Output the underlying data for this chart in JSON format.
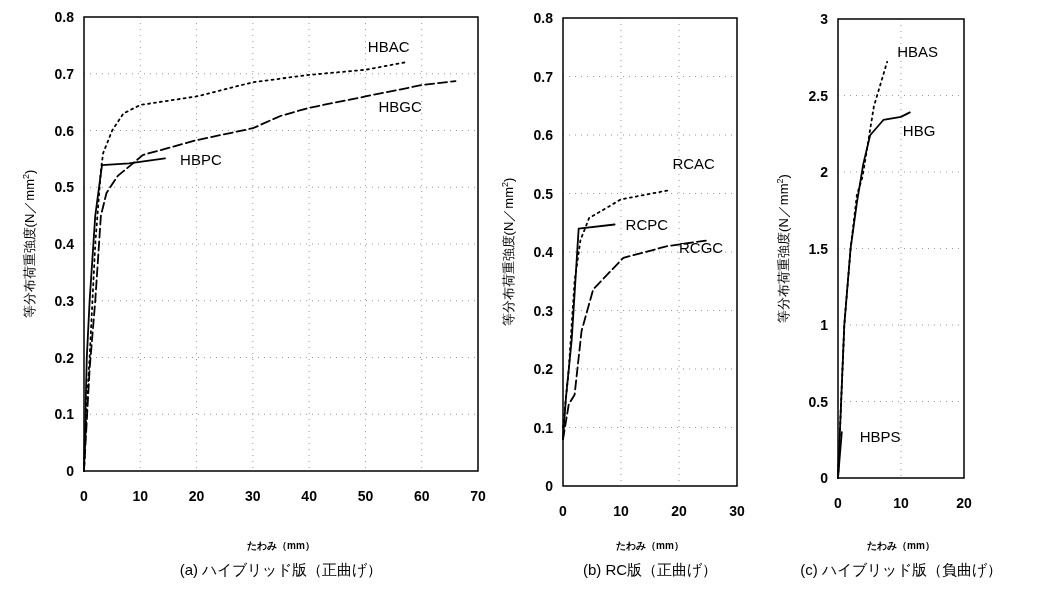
{
  "chart_data": [
    {
      "type": "line",
      "title": "(a) ハイブリッド版（正曲げ）",
      "xlabel": "たわみ（mm）",
      "ylabel": "等分布荷重強度(N／mm$^{2}$)",
      "xlim": [
        0,
        70
      ],
      "ylim": [
        0,
        0.8
      ],
      "xticks": [
        0,
        10,
        20,
        30,
        40,
        50,
        60,
        70
      ],
      "yticks": [
        0,
        0.1,
        0.2,
        0.3,
        0.4,
        0.5,
        0.6,
        0.7,
        0.8
      ],
      "grid": true,
      "series": [
        {
          "name": "HBAC",
          "color": "#000000",
          "line_style": "dotted",
          "x": [
            0,
            0.5,
            1,
            2,
            3,
            3.4,
            5,
            7,
            10,
            20,
            30,
            40,
            50,
            57
          ],
          "values": [
            0,
            0.12,
            0.2,
            0.4,
            0.53,
            0.56,
            0.6,
            0.63,
            0.645,
            0.66,
            0.685,
            0.698,
            0.707,
            0.72
          ]
        },
        {
          "name": "HBGC",
          "color": "#000000",
          "line_style": "dashed",
          "x": [
            0,
            1,
            2,
            3,
            4,
            6,
            10.5,
            20,
            30,
            35,
            40,
            50,
            60,
            66
          ],
          "values": [
            0,
            0.18,
            0.3,
            0.45,
            0.49,
            0.52,
            0.557,
            0.583,
            0.604,
            0.626,
            0.64,
            0.66,
            0.68,
            0.687
          ]
        },
        {
          "name": "HBPC",
          "color": "#000000",
          "line_style": "solid",
          "x": [
            0,
            0.5,
            1,
            2,
            3.2,
            8,
            14.4
          ],
          "values": [
            0,
            0.2,
            0.3,
            0.45,
            0.539,
            0.542,
            0.551
          ]
        }
      ]
    },
    {
      "type": "line",
      "title": "(b) RC版（正曲げ）",
      "xlabel": "たわみ（mm）",
      "ylabel": "等分布荷重強度(N／mm$^{2}$)",
      "xlim": [
        0,
        30
      ],
      "ylim": [
        0,
        0.8
      ],
      "xticks": [
        0,
        10,
        20,
        30
      ],
      "yticks": [
        0,
        0.1,
        0.2,
        0.3,
        0.4,
        0.5,
        0.6,
        0.7,
        0.8
      ],
      "grid": true,
      "series": [
        {
          "name": "RCAC",
          "color": "#000000",
          "line_style": "dotted",
          "x": [
            0,
            1,
            2,
            3,
            4.5,
            10,
            18
          ],
          "values": [
            0.1,
            0.2,
            0.35,
            0.42,
            0.458,
            0.49,
            0.505
          ]
        },
        {
          "name": "RCPC",
          "color": "#000000",
          "line_style": "solid",
          "x": [
            0,
            0.5,
            1.5,
            2.7,
            8.9
          ],
          "values": [
            0.08,
            0.15,
            0.25,
            0.44,
            0.447
          ]
        },
        {
          "name": "RCGC",
          "color": "#000000",
          "line_style": "dashed",
          "x": [
            0,
            1,
            2,
            3.2,
            5.2,
            10.4,
            18,
            25
          ],
          "values": [
            0.08,
            0.14,
            0.156,
            0.265,
            0.336,
            0.39,
            0.41,
            0.42
          ]
        }
      ]
    },
    {
      "type": "line",
      "title": "(c) ハイブリッド版（負曲げ）",
      "xlabel": "たわみ（mm）",
      "ylabel": "等分布荷重強度(N／mm$^{2}$)",
      "xlim": [
        0,
        20
      ],
      "ylim": [
        0,
        3
      ],
      "xticks": [
        0,
        10,
        20
      ],
      "yticks": [
        0,
        0.5,
        1,
        1.5,
        2,
        2.5,
        3
      ],
      "grid": true,
      "series": [
        {
          "name": "HBAS",
          "color": "#000000",
          "line_style": "dotted",
          "x": [
            0,
            0.5,
            1,
            2,
            3,
            3.9,
            5.7,
            7.8
          ],
          "values": [
            0,
            0.5,
            1,
            1.5,
            1.85,
            1.97,
            2.43,
            2.72
          ]
        },
        {
          "name": "HBG",
          "color": "#000000",
          "line_style": "solid",
          "x": [
            0,
            0.5,
            1,
            2,
            3,
            4,
            5.1,
            7.2,
            10,
            11.4
          ],
          "values": [
            0,
            0.5,
            1,
            1.5,
            1.8,
            2.05,
            2.24,
            2.34,
            2.36,
            2.39
          ]
        },
        {
          "name": "HBPS",
          "color": "#000000",
          "line_style": "solid",
          "x": [
            0,
            0.3,
            0.6
          ],
          "values": [
            0,
            0.15,
            0.3
          ]
        }
      ]
    }
  ]
}
